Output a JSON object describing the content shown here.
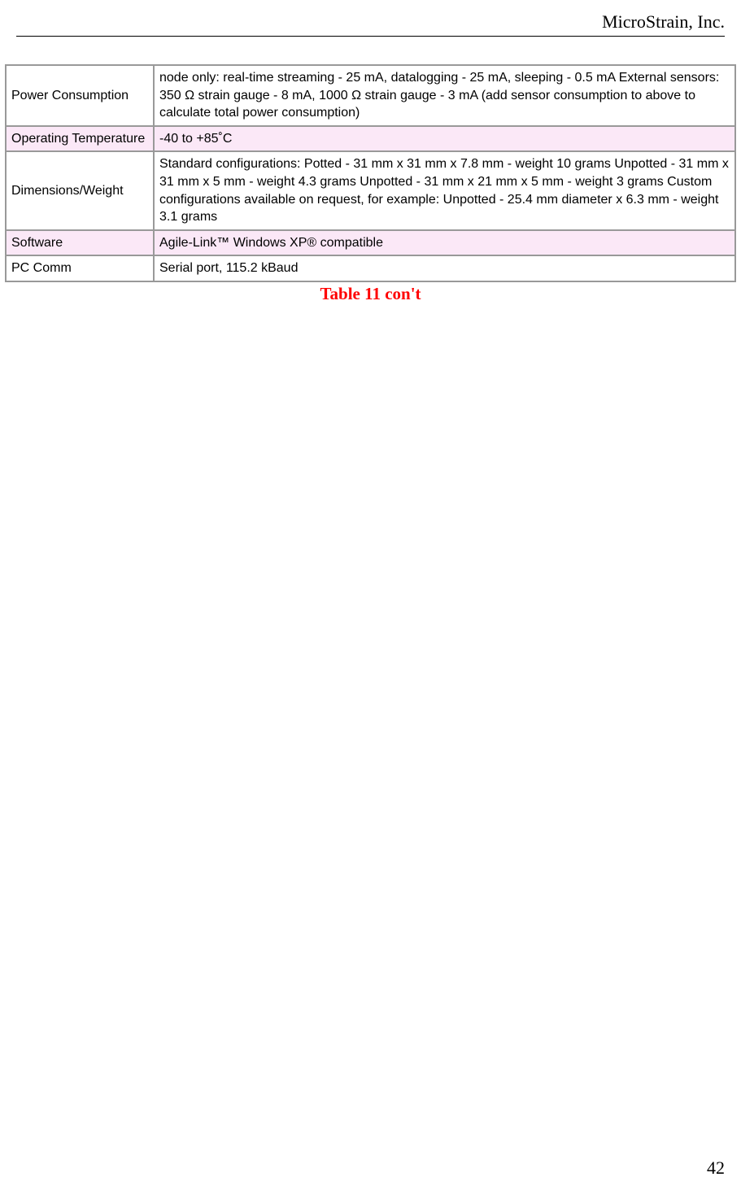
{
  "header": {
    "company": "MicroStrain, Inc."
  },
  "table": {
    "rows": [
      {
        "label": "Power Consumption",
        "value": "node only: real-time streaming - 25 mA, datalogging - 25 mA, sleeping - 0.5 mA External sensors: 350 Ω strain gauge - 8 mA, 1000 Ω strain gauge - 3 mA (add sensor consumption to above to calculate total power consumption)"
      },
      {
        "label": "Operating Temperature",
        "value": "-40 to +85˚C"
      },
      {
        "label": "Dimensions/Weight",
        "value": "Standard configurations: Potted - 31 mm x 31 mm x 7.8 mm - weight 10 grams Unpotted - 31 mm x 31 mm x 5 mm - weight 4.3 grams Unpotted - 31 mm x 21 mm x 5 mm - weight 3 grams Custom configurations available on request, for example: Unpotted - 25.4 mm diameter x 6.3 mm - weight 3.1 grams"
      },
      {
        "label": "Software",
        "value": "Agile-Link™ Windows XP® compatible"
      },
      {
        "label": "PC Comm",
        "value": "Serial port, 115.2 kBaud"
      }
    ]
  },
  "caption": "Table 11 con't",
  "page_number": "42",
  "styles": {
    "shaded_row_bg": "#fbe8f7",
    "caption_color": "#ff0000",
    "border_color": "#999999"
  }
}
